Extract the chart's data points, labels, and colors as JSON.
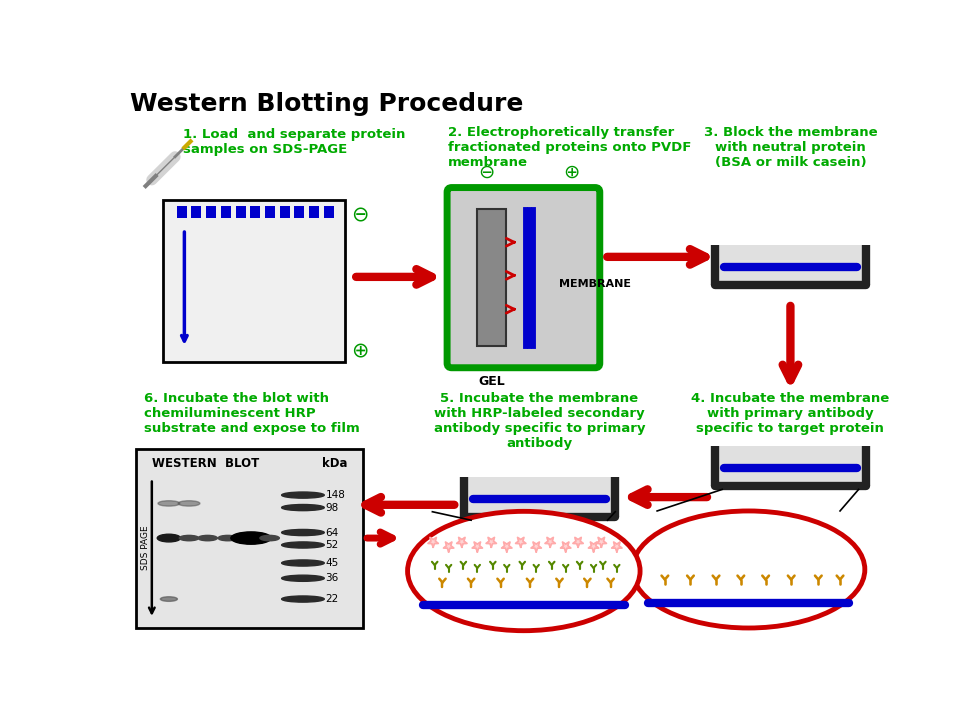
{
  "title": "Western Blotting Procedure",
  "bg_color": "#ffffff",
  "title_color": "#000000",
  "title_fontsize": 18,
  "steps": {
    "step1_label": "1. Load  and separate protein\nsamples on SDS-PAGE",
    "step2_label": "2. Electrophoretically transfer\nfractionated proteins onto PVDF\nmembrane",
    "step3_label": "3. Block the membrane\nwith neutral protein\n(BSA or milk casein)",
    "step4_label": "4. Incubate the membrane\nwith primary antibody\nspecific to target protein",
    "step5_label": "5. Incubate the membrane\nwith HRP-labeled secondary\nantibody specific to primary\nantibody",
    "step6_label": "6. Incubate the blot with\nchemiluminescent HRP\nsubstrate and expose to film"
  },
  "label_color": "#00aa00",
  "arrow_color": "#cc0000",
  "gel_frame_color": "#009900",
  "tray_color": "#222222",
  "tray_fill": "#e0e0e0",
  "blue_line_color": "#0000cc",
  "red_ellipse_color": "#cc0000",
  "antibody_primary_color": "#cc8800",
  "antibody_secondary_color": "#558800",
  "star_color": "#ffaaaa",
  "anchor_color": "#0000cc",
  "marker_data": [
    [
      148,
      0.13
    ],
    [
      98,
      0.22
    ],
    [
      64,
      0.4
    ],
    [
      52,
      0.49
    ],
    [
      45,
      0.62
    ],
    [
      36,
      0.73
    ],
    [
      22,
      0.88
    ]
  ]
}
